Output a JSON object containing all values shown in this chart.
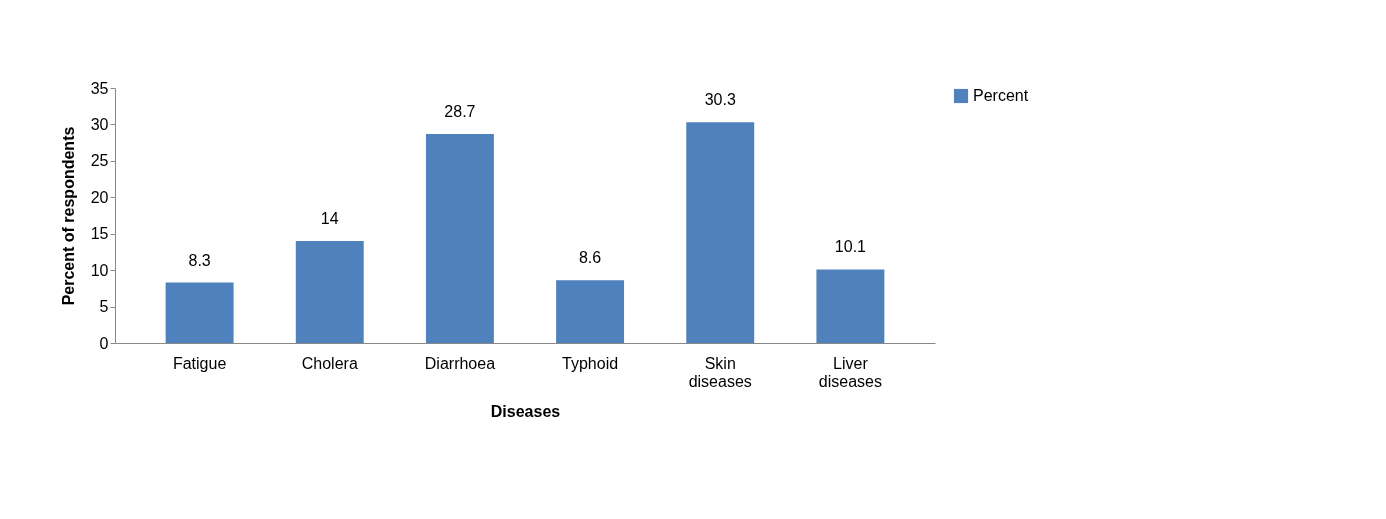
{
  "chart_data": {
    "type": "bar",
    "xlabel": "Diseases",
    "ylabel": "Percent of respondents",
    "categories": [
      "Fatigue",
      "Cholera",
      "Diarrhoea",
      "Typhoid",
      "Skin diseases",
      "Liver diseases"
    ],
    "series": [
      {
        "name": "Percent",
        "color": "#4f81bd",
        "values": [
          8.3,
          14,
          28.7,
          8.6,
          30.3,
          10.1
        ]
      }
    ],
    "ylim": [
      0,
      35
    ],
    "yticks": [
      0,
      5,
      10,
      15,
      20,
      25,
      30,
      35
    ],
    "grid": false,
    "legend": "right",
    "data_labels": true
  }
}
